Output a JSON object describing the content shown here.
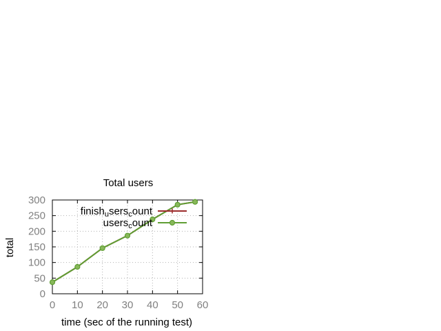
{
  "chart_data": {
    "type": "line",
    "title": "Total users",
    "xlabel": "time (sec of the running test)",
    "ylabel": "total",
    "xlim": [
      0,
      60
    ],
    "ylim": [
      0,
      300
    ],
    "xticks": [
      0,
      10,
      20,
      30,
      40,
      50,
      60
    ],
    "yticks": [
      0,
      50,
      100,
      150,
      200,
      250,
      300
    ],
    "grid": true,
    "legend_position": "top-right",
    "series": [
      {
        "name_parts": [
          [
            "finish",
            false
          ],
          [
            "u",
            true
          ],
          [
            "sers",
            false
          ],
          [
            "c",
            true
          ],
          [
            "ount",
            false
          ]
        ],
        "color": "#9b2a2a",
        "marker": "plus",
        "x": [
          0,
          10,
          20,
          30,
          40,
          50,
          57
        ],
        "y": [
          37,
          86,
          146,
          186,
          238,
          285,
          294
        ]
      },
      {
        "name_parts": [
          [
            "users",
            false
          ],
          [
            "c",
            true
          ],
          [
            "ount",
            false
          ]
        ],
        "color": "#5f9e33",
        "marker": "circle",
        "x": [
          0,
          10,
          20,
          30,
          40,
          50,
          57
        ],
        "y": [
          37,
          86,
          146,
          186,
          238,
          285,
          294
        ]
      }
    ]
  }
}
